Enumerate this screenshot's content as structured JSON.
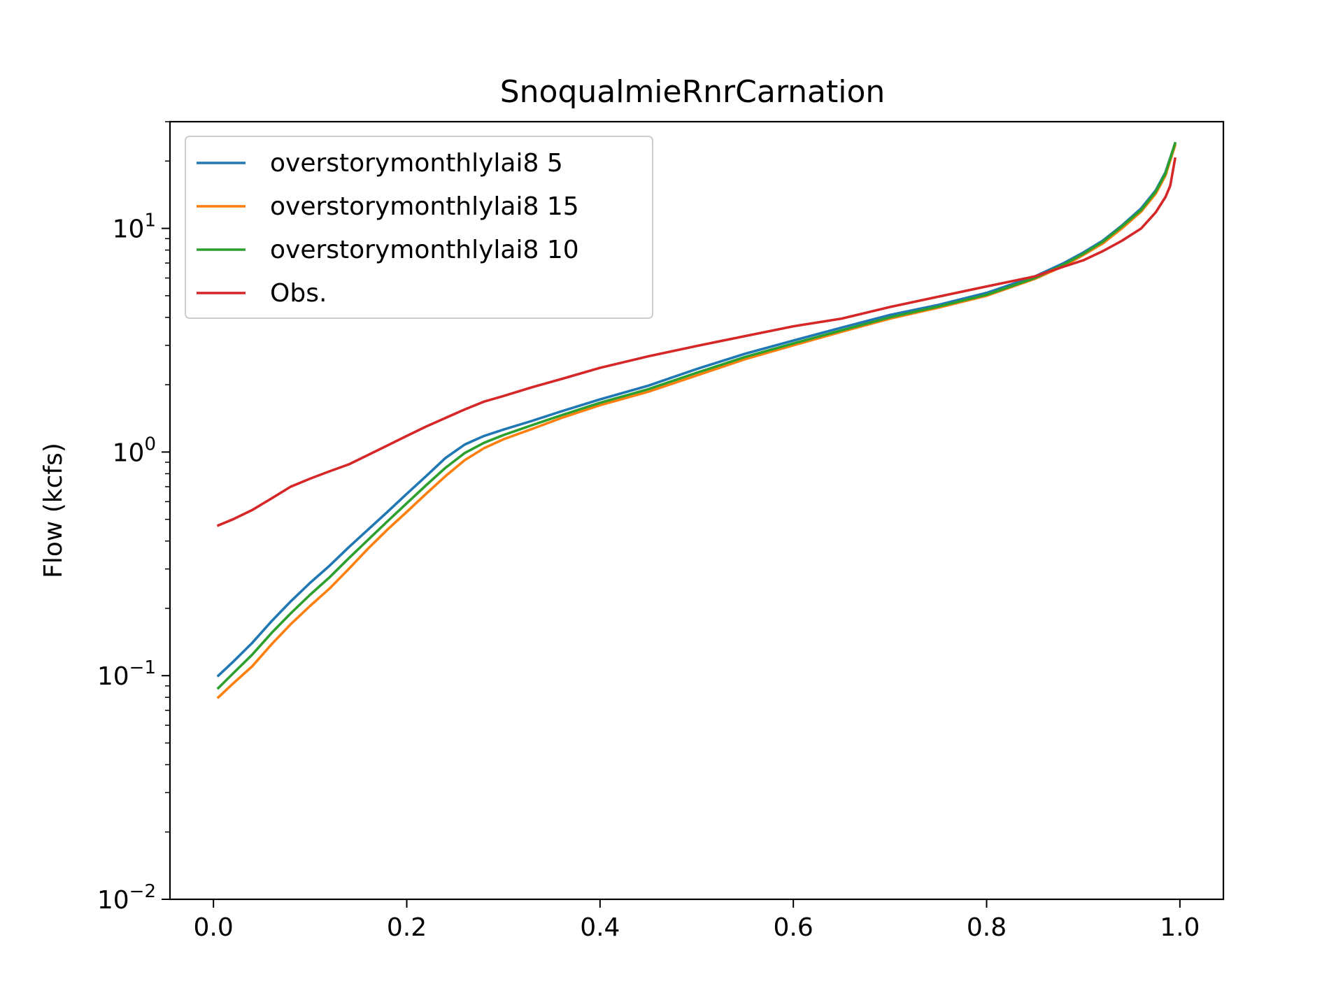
{
  "chart_data": {
    "type": "line",
    "title": "SnoqualmieRnrCarnation",
    "xlabel": "",
    "ylabel": "Flow (kcfs)",
    "xlim": [
      -0.045,
      1.045
    ],
    "ylim": [
      0.01,
      30
    ],
    "y_scale": "log",
    "grid": false,
    "legend_position": "top-left",
    "x_ticks": [
      {
        "value": 0.0,
        "label": "0.0"
      },
      {
        "value": 0.2,
        "label": "0.2"
      },
      {
        "value": 0.4,
        "label": "0.4"
      },
      {
        "value": 0.6,
        "label": "0.6"
      },
      {
        "value": 0.8,
        "label": "0.8"
      },
      {
        "value": 1.0,
        "label": "1.0"
      }
    ],
    "y_ticks": [
      {
        "value": 0.01,
        "base": "10",
        "exp": "−2"
      },
      {
        "value": 0.1,
        "base": "10",
        "exp": "−1"
      },
      {
        "value": 1,
        "base": "10",
        "exp": "0"
      },
      {
        "value": 10,
        "base": "10",
        "exp": "1"
      }
    ],
    "series": [
      {
        "name": "overstorymonthlylai8 5",
        "color": "#1f77b4",
        "x": [
          0.005,
          0.02,
          0.04,
          0.06,
          0.08,
          0.1,
          0.12,
          0.14,
          0.16,
          0.18,
          0.2,
          0.22,
          0.24,
          0.26,
          0.28,
          0.3,
          0.33,
          0.36,
          0.4,
          0.45,
          0.5,
          0.55,
          0.6,
          0.65,
          0.7,
          0.75,
          0.8,
          0.85,
          0.88,
          0.9,
          0.92,
          0.94,
          0.96,
          0.975,
          0.985,
          0.995
        ],
        "y": [
          0.1,
          0.115,
          0.14,
          0.175,
          0.215,
          0.26,
          0.31,
          0.375,
          0.45,
          0.54,
          0.65,
          0.78,
          0.94,
          1.08,
          1.18,
          1.26,
          1.38,
          1.52,
          1.72,
          1.98,
          2.35,
          2.75,
          3.15,
          3.6,
          4.1,
          4.55,
          5.15,
          6.1,
          7.0,
          7.8,
          8.8,
          10.3,
          12.3,
          14.8,
          17.8,
          24.0
        ]
      },
      {
        "name": "overstorymonthlylai8 15",
        "color": "#ff7f0e",
        "x": [
          0.005,
          0.02,
          0.04,
          0.06,
          0.08,
          0.1,
          0.12,
          0.14,
          0.16,
          0.18,
          0.2,
          0.22,
          0.24,
          0.26,
          0.28,
          0.3,
          0.33,
          0.36,
          0.4,
          0.45,
          0.5,
          0.55,
          0.6,
          0.65,
          0.7,
          0.75,
          0.8,
          0.85,
          0.88,
          0.9,
          0.92,
          0.94,
          0.96,
          0.975,
          0.985,
          0.995
        ],
        "y": [
          0.08,
          0.092,
          0.11,
          0.138,
          0.17,
          0.205,
          0.245,
          0.3,
          0.37,
          0.45,
          0.54,
          0.65,
          0.78,
          0.92,
          1.04,
          1.14,
          1.27,
          1.42,
          1.62,
          1.86,
          2.2,
          2.6,
          3.0,
          3.45,
          3.95,
          4.42,
          5.0,
          5.95,
          6.8,
          7.6,
          8.55,
          10.0,
          11.9,
          14.3,
          17.2,
          23.5
        ]
      },
      {
        "name": "overstorymonthlylai8 10",
        "color": "#2ca02c",
        "x": [
          0.005,
          0.02,
          0.04,
          0.06,
          0.08,
          0.1,
          0.12,
          0.14,
          0.16,
          0.18,
          0.2,
          0.22,
          0.24,
          0.26,
          0.28,
          0.3,
          0.33,
          0.36,
          0.4,
          0.45,
          0.5,
          0.55,
          0.6,
          0.65,
          0.7,
          0.75,
          0.8,
          0.85,
          0.88,
          0.9,
          0.92,
          0.94,
          0.96,
          0.975,
          0.985,
          0.995
        ],
        "y": [
          0.088,
          0.102,
          0.124,
          0.155,
          0.19,
          0.23,
          0.275,
          0.335,
          0.405,
          0.49,
          0.59,
          0.71,
          0.85,
          0.99,
          1.1,
          1.19,
          1.32,
          1.46,
          1.66,
          1.91,
          2.26,
          2.66,
          3.06,
          3.5,
          4.0,
          4.47,
          5.05,
          6.0,
          6.9,
          7.7,
          8.7,
          10.2,
          12.1,
          14.6,
          17.6,
          24.0
        ]
      },
      {
        "name": "Obs.",
        "color": "#d62728",
        "x": [
          0.005,
          0.02,
          0.04,
          0.06,
          0.08,
          0.1,
          0.12,
          0.14,
          0.16,
          0.18,
          0.2,
          0.22,
          0.24,
          0.26,
          0.28,
          0.3,
          0.33,
          0.36,
          0.4,
          0.45,
          0.5,
          0.55,
          0.6,
          0.65,
          0.7,
          0.75,
          0.8,
          0.85,
          0.88,
          0.9,
          0.92,
          0.94,
          0.96,
          0.975,
          0.985,
          0.99,
          0.995
        ],
        "y": [
          0.47,
          0.5,
          0.55,
          0.62,
          0.7,
          0.76,
          0.82,
          0.88,
          0.97,
          1.07,
          1.18,
          1.3,
          1.42,
          1.55,
          1.68,
          1.78,
          1.95,
          2.12,
          2.38,
          2.68,
          2.98,
          3.3,
          3.65,
          3.95,
          4.45,
          4.95,
          5.5,
          6.1,
          6.75,
          7.2,
          7.9,
          8.8,
          10.0,
          11.8,
          13.8,
          15.5,
          20.5
        ]
      }
    ]
  }
}
